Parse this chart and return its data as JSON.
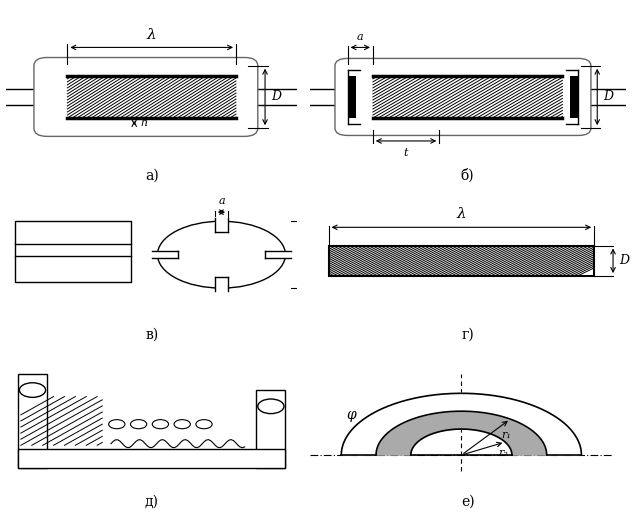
{
  "labels": [
    "а)",
    "б)",
    "в)",
    "г)",
    "д)",
    "е)"
  ],
  "bg_color": "#ffffff"
}
